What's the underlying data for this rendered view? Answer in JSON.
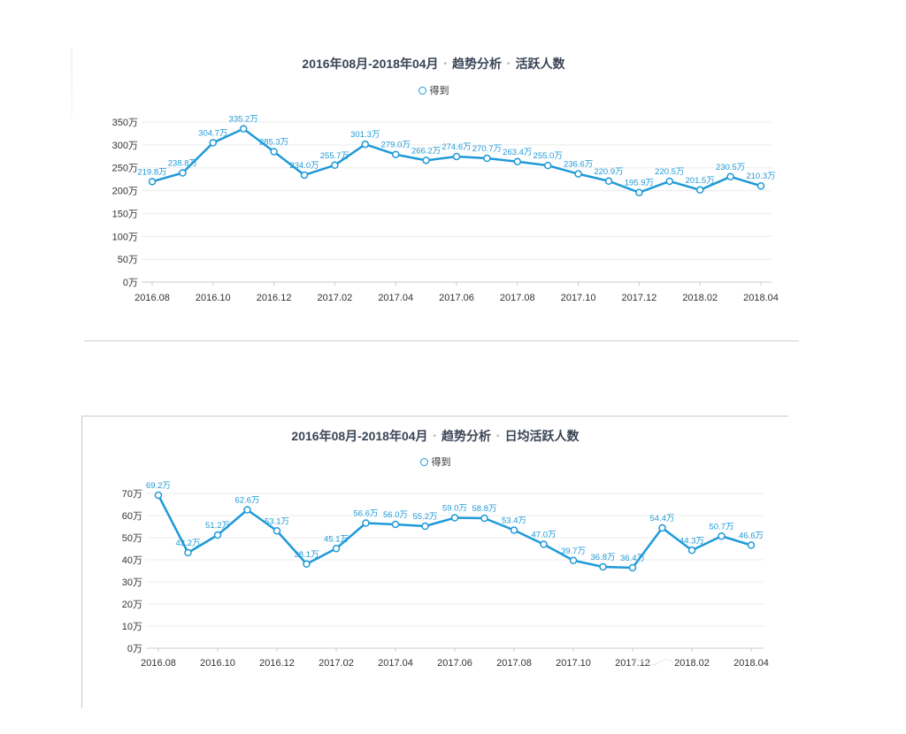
{
  "charts": [
    {
      "title_parts": [
        "2016年08月-2018年04月",
        "趋势分析",
        "活跃人数"
      ],
      "legend": "得到"
    },
    {
      "title_parts": [
        "2016年08月-2018年04月",
        "趋势分析",
        "日均活跃人数"
      ],
      "legend": "得到"
    }
  ],
  "colors": {
    "line": "#1f9ad8",
    "grid": "#ececec",
    "axis": "#999999",
    "label": "#1f9ad8"
  },
  "chart_data": [
    {
      "type": "line",
      "title": "2016年08月-2018年04月 · 趋势分析 · 活跃人数",
      "xlabel": "",
      "ylabel": "",
      "unit": "万",
      "ylim": [
        0,
        350
      ],
      "yticks": [
        0,
        50,
        100,
        150,
        200,
        250,
        300,
        350
      ],
      "ytick_labels": [
        "0万",
        "50万",
        "100万",
        "150万",
        "200万",
        "250万",
        "300万",
        "350万"
      ],
      "x": [
        "2016.08",
        "2016.09",
        "2016.10",
        "2016.11",
        "2016.12",
        "2017.01",
        "2017.02",
        "2017.03",
        "2017.04",
        "2017.05",
        "2017.06",
        "2017.07",
        "2017.08",
        "2017.09",
        "2017.10",
        "2017.11",
        "2017.12",
        "2018.01",
        "2018.02",
        "2018.03",
        "2018.04"
      ],
      "xtick_labels": [
        "2016.08",
        "2016.10",
        "2016.12",
        "2017.02",
        "2017.04",
        "2017.06",
        "2017.08",
        "2017.10",
        "2017.12",
        "2018.02",
        "2018.04"
      ],
      "series": [
        {
          "name": "得到",
          "values": [
            219.8,
            238.8,
            304.7,
            335.2,
            285.3,
            234.0,
            255.7,
            301.3,
            279.0,
            266.2,
            274.6,
            270.7,
            263.4,
            255.0,
            236.6,
            220.9,
            195.9,
            220.5,
            201.5,
            230.5,
            210.3
          ],
          "labels": [
            "219.8万",
            "238.8万",
            "304.7万",
            "335.2万",
            "285.3万",
            "234.0万",
            "255.7万",
            "301.3万",
            "279.0万",
            "266.2万",
            "274.6万",
            "270.7万",
            "263.4万",
            "255.0万",
            "236.6万",
            "220.9万",
            "195.9万",
            "220.5万",
            "201.5万",
            "230.5万",
            "210.3万"
          ]
        }
      ]
    },
    {
      "type": "line",
      "title": "2016年08月-2018年04月 · 趋势分析 · 日均活跃人数",
      "xlabel": "",
      "ylabel": "",
      "unit": "万",
      "ylim": [
        0,
        70
      ],
      "yticks": [
        0,
        10,
        20,
        30,
        40,
        50,
        60,
        70
      ],
      "ytick_labels": [
        "0万",
        "10万",
        "20万",
        "30万",
        "40万",
        "50万",
        "60万",
        "70万"
      ],
      "x": [
        "2016.08",
        "2016.09",
        "2016.10",
        "2016.11",
        "2016.12",
        "2017.01",
        "2017.02",
        "2017.03",
        "2017.04",
        "2017.05",
        "2017.06",
        "2017.07",
        "2017.08",
        "2017.09",
        "2017.10",
        "2017.11",
        "2017.12",
        "2018.01",
        "2018.02",
        "2018.03",
        "2018.04"
      ],
      "xtick_labels": [
        "2016.08",
        "2016.10",
        "2016.12",
        "2017.02",
        "2017.04",
        "2017.06",
        "2017.08",
        "2017.10",
        "2017.12",
        "2018.02",
        "2018.04"
      ],
      "series": [
        {
          "name": "得到",
          "values": [
            69.2,
            43.2,
            51.2,
            62.6,
            53.1,
            38.1,
            45.1,
            56.6,
            56.0,
            55.2,
            59.0,
            58.8,
            53.4,
            47.0,
            39.7,
            36.8,
            36.4,
            54.4,
            44.3,
            50.7,
            46.6
          ],
          "labels": [
            "69.2万",
            "43.2万",
            "51.2万",
            "62.6万",
            "53.1万",
            "38.1万",
            "45.1万",
            "56.6万",
            "56.0万",
            "55.2万",
            "59.0万",
            "58.8万",
            "53.4万",
            "47.0万",
            "39.7万",
            "36.8万",
            "36.4万",
            "54.4万",
            "44.3万",
            "50.7万",
            "46.6万"
          ]
        }
      ]
    }
  ]
}
